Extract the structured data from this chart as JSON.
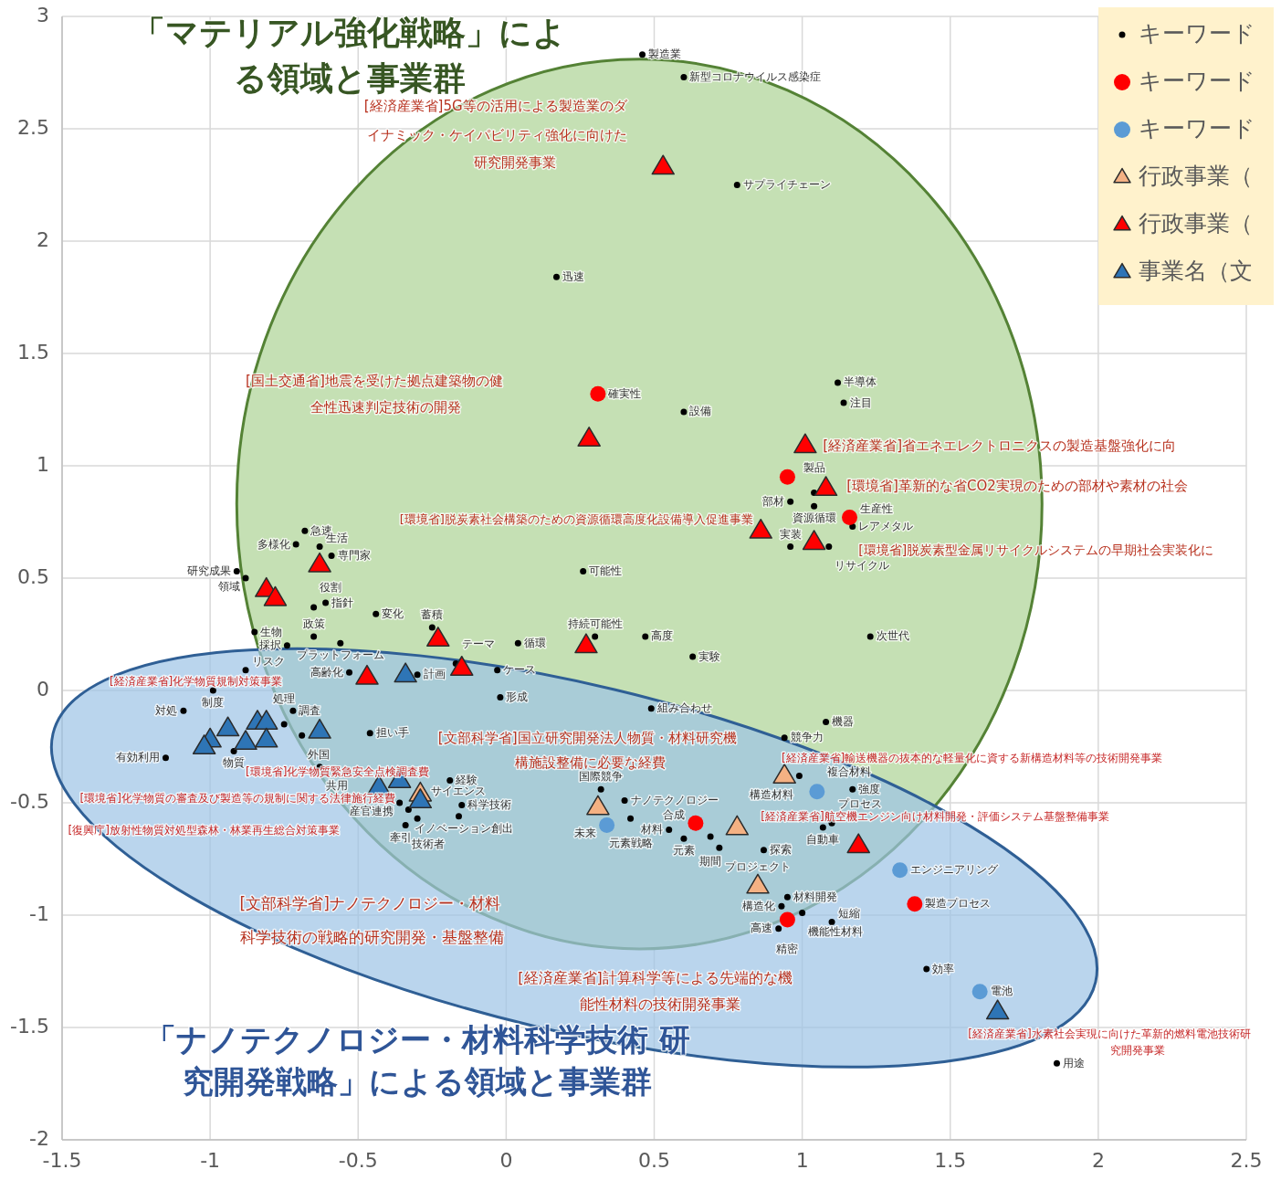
{
  "chart_data": {
    "type": "scatter",
    "title": "「マテリアル強化戦略」による領域と事業群",
    "subtitle": "「ナノテクノロジー・材料科学技術 研究開発戦略」による領域と事業群",
    "xlim": [
      -1.5,
      2.5
    ],
    "xticks": [
      -1.5,
      -1,
      -0.5,
      0,
      0.5,
      1,
      1.5,
      2,
      2.5
    ],
    "ylim": [
      -2,
      3
    ],
    "yticks": [
      -2,
      -1.5,
      -1,
      -0.5,
      0,
      0.5,
      1,
      1.5,
      2,
      2.5,
      3
    ],
    "grid": true,
    "legend": "top right",
    "series": [
      {
        "name": "キーワード",
        "color": "#000000",
        "marker": "circle",
        "x": [
          0.46,
          0.6,
          0.78,
          0.17,
          0.6,
          1.14,
          1.12,
          0.26,
          0.96,
          1.04,
          1.04,
          0.96,
          1.09,
          1.17,
          1.23,
          0.47,
          0.3,
          0.63,
          0.04,
          0.49,
          1.08,
          0.94,
          -0.02,
          -0.03,
          -0.17,
          -0.25,
          -0.44,
          -0.56,
          -0.65,
          -0.74,
          -0.85,
          -0.65,
          -0.61,
          -0.59,
          -0.71,
          -0.68,
          -0.63,
          -0.91,
          -0.88,
          -0.88,
          -0.99,
          -1.09,
          -1.15,
          -0.75,
          -0.92,
          -0.72,
          -0.69,
          -0.63,
          -0.46,
          -0.53,
          -0.3,
          -0.19,
          -0.15,
          -0.36,
          -0.33,
          -0.3,
          -0.34,
          -0.16,
          0.32,
          0.4,
          0.42,
          0.55,
          0.6,
          0.69,
          0.72,
          0.87,
          1.07,
          1.1,
          0.99,
          1.17,
          0.95,
          0.93,
          1.0,
          1.1,
          0.92,
          1.42,
          1.86
        ],
        "values": [
          2.83,
          2.73,
          2.25,
          1.84,
          1.24,
          1.28,
          1.37,
          0.53,
          0.84,
          0.88,
          0.82,
          0.64,
          0.64,
          0.73,
          0.24,
          0.24,
          0.24,
          0.15,
          0.21,
          -0.08,
          -0.14,
          -0.21,
          -0.03,
          0.09,
          0.12,
          0.28,
          0.34,
          0.21,
          0.24,
          0.2,
          0.26,
          0.37,
          0.39,
          0.6,
          0.65,
          0.71,
          0.64,
          0.53,
          0.5,
          0.09,
          0.0,
          -0.09,
          -0.3,
          -0.15,
          -0.27,
          -0.09,
          -0.2,
          -0.34,
          -0.19,
          0.08,
          0.07,
          -0.4,
          -0.51,
          -0.5,
          -0.53,
          -0.57,
          -0.6,
          -0.56,
          -0.44,
          -0.49,
          -0.57,
          -0.62,
          -0.66,
          -0.65,
          -0.7,
          -0.71,
          -0.61,
          -0.59,
          -0.38,
          -0.44,
          -0.92,
          -0.96,
          -0.99,
          -1.03,
          -1.06,
          -1.24,
          -1.66
        ],
        "value_labels": [
          "製造業",
          "新型コロナウイルス感染症",
          "サプライチェーン",
          "迅速",
          "設備",
          "注目",
          "半導体",
          "可能性",
          "部材",
          "製品",
          "資源循環",
          "実装",
          "リサイクル",
          "レアメタル",
          "次世代",
          "高度",
          "持続可能性",
          "実験",
          "循環",
          "組み合わせ",
          "機器",
          "競争力",
          "形成",
          "ケース",
          "テーマ",
          "蓄積",
          "変化",
          "プラットフォーム",
          "政策",
          "採択",
          "生物",
          "役割",
          "指針",
          "専門家",
          "多様化",
          "急速",
          "生活",
          "研究成果",
          "領域",
          "リスク",
          "制度",
          "対処",
          "有効利用",
          "処理",
          "物質",
          "調査",
          "外国",
          "共用",
          "担い手",
          "高齢化",
          "計画",
          "経験",
          "科学技術",
          "産官連携",
          "イノベーション創出",
          "牽引",
          "技術者",
          "サイエンス",
          "国際競争",
          "ナノテクノロジー",
          "元素戦略",
          "材料",
          "元素",
          "期間",
          "プロジェクト",
          "探索",
          "自動車",
          "プロセス",
          "構造材料",
          "強度",
          "材料開発",
          "構造化",
          "機能性材料",
          "短縮",
          "高速",
          "効率",
          "用途"
        ]
      },
      {
        "name": "キーワード",
        "color": "#ff0000",
        "marker": "circle",
        "x": [
          0.31,
          0.95,
          1.16,
          0.64,
          1.38,
          0.95
        ],
        "values": [
          1.32,
          0.95,
          0.77,
          -0.59,
          -0.95,
          -1.02
        ],
        "value_labels": [
          "確実性",
          null,
          "生産性",
          "合成",
          "製造プロセス",
          "精密"
        ]
      },
      {
        "name": "キーワード",
        "color": "#5b9bd5",
        "marker": "circle",
        "x": [
          1.05,
          0.34,
          1.33,
          1.6
        ],
        "values": [
          -0.45,
          -0.6,
          -0.8,
          -1.34
        ],
        "value_labels": [
          "複合材料",
          "未来",
          "エンジニアリング",
          "電池"
        ]
      },
      {
        "name": "行政事業（",
        "color": "#f4b183",
        "marker": "triangle",
        "x": [
          0.94,
          0.31,
          0.78,
          0.85,
          -0.29
        ],
        "values": [
          -0.38,
          -0.52,
          -0.61,
          -0.87,
          -0.46
        ]
      },
      {
        "name": "行政事業（",
        "color": "#ff0000",
        "marker": "triangle",
        "x": [
          0.53,
          0.28,
          1.01,
          1.08,
          0.86,
          1.04,
          -0.63,
          -0.81,
          -0.78,
          -0.23,
          0.27,
          -0.15,
          -0.47,
          1.19
        ],
        "values": [
          2.33,
          1.12,
          1.09,
          0.9,
          0.71,
          0.66,
          0.56,
          0.45,
          0.41,
          0.23,
          0.2,
          0.1,
          0.06,
          -0.69
        ]
      },
      {
        "name": "事業名（文",
        "color": "#2e75b6",
        "marker": "triangle",
        "x": [
          -1.0,
          -1.02,
          -0.94,
          -0.84,
          -0.81,
          -0.88,
          -0.81,
          -0.63,
          -0.43,
          -0.36,
          -0.34,
          -0.29,
          1.66
        ],
        "values": [
          -0.22,
          -0.25,
          -0.17,
          -0.14,
          -0.14,
          -0.23,
          -0.22,
          -0.18,
          -0.43,
          -0.4,
          0.07,
          -0.49,
          -1.43
        ]
      }
    ],
    "annotations": [
      "[経済産業省]5G等の活用による製造業のダ",
      "イナミック・ケイパビリティ強化に向けた",
      "研究開発事業",
      "[国土交通省]地震を受けた拠点建築物の健",
      "全性迅速判定技術の開発",
      "[経済産業省]省エネエレクトロニクスの製造基盤強化に向",
      "[環境省]革新的な省CO2実現のための部材や素材の社会",
      "[環境省]脱炭素社会構築のための資源循環高度化設備導入促進事業",
      "[環境省]脱炭素型金属リサイクルシステムの早期社会実装化に",
      "[文部科学省]国立研究開発法人物質・材料研究機",
      "構施設整備に必要な経費",
      "[文部科学省]ナノテクノロジー・材料",
      "科学技術の戦略的研究開発・基盤整備",
      "[経済産業省]計算科学等による先端的な機",
      "能性材料の技術開発事業",
      "[経済産業省]化学物質規制対策事業",
      "[環境省]化学物質緊急安全点検調査費",
      "[環境省]化学物質の審査及び製造等の規制に関する法律施行経費",
      "[復興庁]放射性物質対処型森林・林業再生総合対策事業",
      "[経済産業省]輸送機器の抜本的な軽量化に資する新構造材料等の技術開発事業",
      "[経済産業省]航空機エンジン向け材料開発・評価システム基盤整備事業",
      "[経済産業省]水素社会実現に向けた革新的燃料電池技術研",
      "究開発事業"
    ]
  }
}
